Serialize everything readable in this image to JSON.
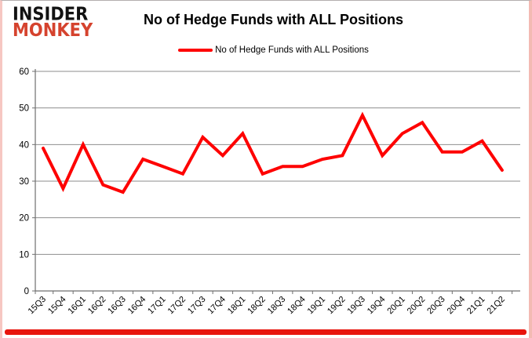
{
  "logo": {
    "line1": "INSIDER",
    "line2": "MONKEY"
  },
  "header": {
    "title": "No of Hedge Funds with ALL Positions"
  },
  "legend": {
    "label": "No of Hedge Funds with ALL Positions"
  },
  "colors": {
    "line": "#fe0000",
    "grid": "#8e8e8e",
    "axis": "#6f6f6f",
    "tick_text": "#000000",
    "logo_black": "#121212",
    "logo_red": "#d5432e",
    "bottom_bar": "#e8150d"
  },
  "chart_data": {
    "type": "line",
    "title": "No of Hedge Funds with ALL Positions",
    "categories": [
      "15Q3",
      "15Q4",
      "16Q1",
      "16Q2",
      "16Q3",
      "16Q4",
      "17Q1",
      "17Q2",
      "17Q3",
      "17Q4",
      "18Q1",
      "18Q2",
      "18Q3",
      "18Q4",
      "19Q1",
      "19Q2",
      "19Q3",
      "19Q4",
      "20Q1",
      "20Q2",
      "20Q3",
      "20Q4",
      "21Q1",
      "21Q2"
    ],
    "series": [
      {
        "name": "No of Hedge Funds with ALL Positions",
        "values": [
          39,
          28,
          40,
          29,
          27,
          36,
          34,
          32,
          42,
          37,
          43,
          32,
          34,
          34,
          36,
          37,
          48,
          37,
          43,
          46,
          38,
          38,
          41,
          33
        ]
      }
    ],
    "ylim": [
      0,
      60
    ],
    "yticks": [
      0,
      10,
      20,
      30,
      40,
      50,
      60
    ],
    "grid": true,
    "legend_position": "top"
  }
}
